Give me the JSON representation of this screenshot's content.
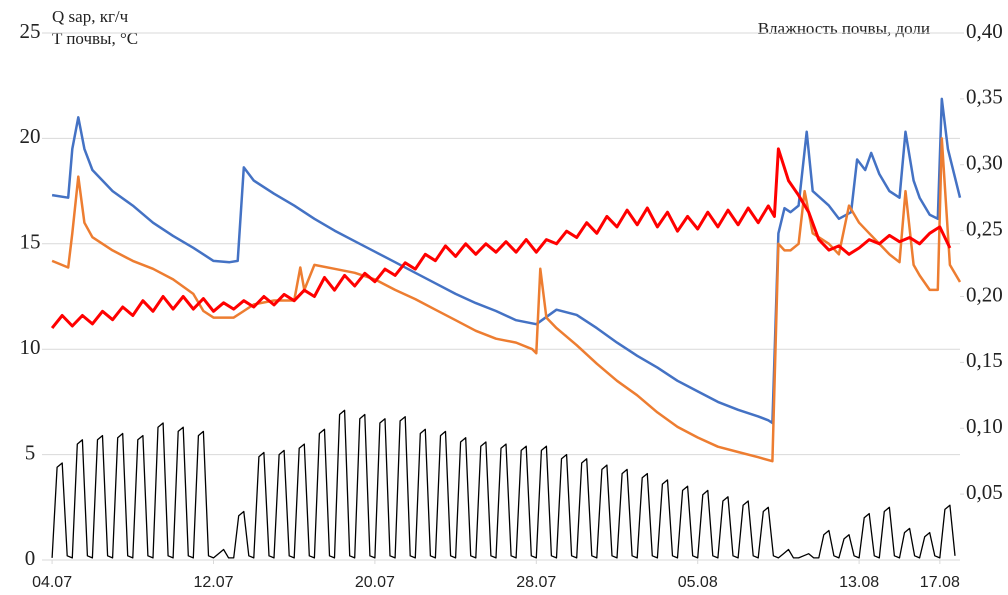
{
  "chart_data": {
    "type": "line",
    "ylabel": [
      "Q sap, кг/ч",
      "T почвы, °С"
    ],
    "y2label": "Влажность почвы, доли",
    "xlim": [
      -0.5,
      45
    ],
    "ylim": [
      0,
      25
    ],
    "y2lim": [
      0,
      0.4
    ],
    "xticks": [
      {
        "value": 0,
        "label": "04.07"
      },
      {
        "value": 8,
        "label": "12.07"
      },
      {
        "value": 16,
        "label": "20.07"
      },
      {
        "value": 24,
        "label": "28.07"
      },
      {
        "value": 32,
        "label": "05.08"
      },
      {
        "value": 40,
        "label": "13.08"
      },
      {
        "value": 44,
        "label": "17.08"
      }
    ],
    "yticks": [
      0,
      5,
      10,
      15,
      20,
      25
    ],
    "y2ticks": [
      {
        "value": 0.05,
        "label": "0,05"
      },
      {
        "value": 0.1,
        "label": "0,10"
      },
      {
        "value": 0.15,
        "label": "0,15"
      },
      {
        "value": 0.2,
        "label": "0,20"
      },
      {
        "value": 0.25,
        "label": "0,25"
      },
      {
        "value": 0.3,
        "label": "0,30"
      },
      {
        "value": 0.35,
        "label": "0,35"
      },
      {
        "value": 0.4,
        "label": "0,40"
      }
    ],
    "grid": true,
    "series": [
      {
        "color": "#000000",
        "width": 1.3,
        "x": [
          0,
          0.25,
          0.5,
          0.75,
          1,
          1.25,
          1.5,
          1.75,
          2,
          2.25,
          2.5,
          2.75,
          3,
          3.25,
          3.5,
          3.75,
          4,
          4.25,
          4.5,
          4.75,
          5,
          5.25,
          5.5,
          5.75,
          6,
          6.25,
          6.5,
          6.75,
          7,
          7.25,
          7.5,
          7.75,
          8,
          8.25,
          8.5,
          8.75,
          9,
          9.25,
          9.5,
          9.75,
          10,
          10.25,
          10.5,
          10.75,
          11,
          11.25,
          11.5,
          11.75,
          12,
          12.25,
          12.5,
          12.75,
          13,
          13.25,
          13.5,
          13.75,
          14,
          14.25,
          14.5,
          14.75,
          15,
          15.25,
          15.5,
          15.75,
          16,
          16.25,
          16.5,
          16.75,
          17,
          17.25,
          17.5,
          17.75,
          18,
          18.25,
          18.5,
          18.75,
          19,
          19.25,
          19.5,
          19.75,
          20,
          20.25,
          20.5,
          20.75,
          21,
          21.25,
          21.5,
          21.75,
          22,
          22.25,
          22.5,
          22.75,
          23,
          23.25,
          23.5,
          23.75,
          24,
          24.25,
          24.5,
          24.75,
          25,
          25.25,
          25.5,
          25.75,
          26,
          26.25,
          26.5,
          26.75,
          27,
          27.25,
          27.5,
          27.75,
          28,
          28.25,
          28.5,
          28.75,
          29,
          29.25,
          29.5,
          29.75,
          30,
          30.25,
          30.5,
          30.75,
          31,
          31.25,
          31.5,
          31.75,
          32,
          32.25,
          32.5,
          32.75,
          33,
          33.25,
          33.5,
          33.75,
          34,
          34.25,
          34.5,
          34.75,
          35,
          35.25,
          35.5,
          35.75,
          36,
          36.25,
          36.5,
          36.75,
          37,
          37.25,
          37.5,
          37.75,
          38,
          38.25,
          38.5,
          38.75,
          39,
          39.25,
          39.5,
          39.75,
          40,
          40.25,
          40.5,
          40.75,
          41,
          41.25,
          41.5,
          41.75,
          42,
          42.25,
          42.5,
          42.75,
          43,
          43.25,
          43.5,
          43.75,
          44,
          44.25,
          44.5,
          44.75
        ],
        "values": [
          0.1,
          4.4,
          4.6,
          0.2,
          0.1,
          5.5,
          5.7,
          0.2,
          0.1,
          5.7,
          5.9,
          0.2,
          0.1,
          5.8,
          6.0,
          0.2,
          0.1,
          5.7,
          5.9,
          0.2,
          0.1,
          6.3,
          6.5,
          0.2,
          0.1,
          6.1,
          6.3,
          0.2,
          0.1,
          5.9,
          6.1,
          0.2,
          0.1,
          0.3,
          0.5,
          0.1,
          0.1,
          2.1,
          2.3,
          0.2,
          0.1,
          4.9,
          5.1,
          0.2,
          0.1,
          5.0,
          5.2,
          0.2,
          0.1,
          5.3,
          5.5,
          0.2,
          0.1,
          6.0,
          6.2,
          0.2,
          0.1,
          6.9,
          7.1,
          0.2,
          0.1,
          6.7,
          6.9,
          0.2,
          0.1,
          6.5,
          6.7,
          0.2,
          0.1,
          6.6,
          6.8,
          0.2,
          0.1,
          6.0,
          6.2,
          0.2,
          0.1,
          5.9,
          6.1,
          0.2,
          0.1,
          5.6,
          5.8,
          0.2,
          0.1,
          5.4,
          5.6,
          0.2,
          0.1,
          5.3,
          5.5,
          0.2,
          0.1,
          5.2,
          5.4,
          0.2,
          0.1,
          5.2,
          5.4,
          0.2,
          0.1,
          4.8,
          5.0,
          0.2,
          0.1,
          4.6,
          4.8,
          0.2,
          0.1,
          4.3,
          4.5,
          0.2,
          0.1,
          4.1,
          4.3,
          0.2,
          0.1,
          3.9,
          4.1,
          0.2,
          0.1,
          3.6,
          3.8,
          0.2,
          0.1,
          3.3,
          3.5,
          0.2,
          0.1,
          3.1,
          3.3,
          0.2,
          0.1,
          2.8,
          3.0,
          0.2,
          0.1,
          2.6,
          2.8,
          0.2,
          0.1,
          2.3,
          2.5,
          0.2,
          0.1,
          0.3,
          0.5,
          0.1,
          0.1,
          0.2,
          0.3,
          0.1,
          0.1,
          1.2,
          1.4,
          0.2,
          0.1,
          1.0,
          1.2,
          0.2,
          0.1,
          2.0,
          2.2,
          0.2,
          0.1,
          2.3,
          2.5,
          0.2,
          0.1,
          1.3,
          1.5,
          0.2,
          0.1,
          1.1,
          1.3,
          0.2,
          0.1,
          2.4,
          2.6,
          0.2
        ]
      },
      {
        "color": "#4472c4",
        "width": 2.5,
        "axis": "y2",
        "x": [
          0,
          0.8,
          1,
          1.3,
          1.6,
          2,
          3,
          4,
          5,
          6,
          7,
          8,
          8.8,
          9.2,
          9.5,
          10,
          11,
          12,
          13,
          14,
          15,
          16,
          17,
          18,
          19,
          20,
          21,
          22,
          23,
          24,
          25,
          26,
          27,
          28,
          29,
          30,
          31,
          32,
          33,
          34,
          35,
          35.5,
          35.7,
          36,
          36.3,
          36.6,
          37,
          37.4,
          37.7,
          38.5,
          39,
          39.6,
          39.9,
          40.3,
          40.6,
          41,
          41.5,
          42,
          42.3,
          42.7,
          43,
          43.5,
          43.9,
          44.1,
          44.4,
          45
        ],
        "values": [
          0.277,
          0.275,
          0.312,
          0.336,
          0.312,
          0.296,
          0.28,
          0.269,
          0.256,
          0.246,
          0.237,
          0.227,
          0.226,
          0.227,
          0.298,
          0.288,
          0.278,
          0.269,
          0.259,
          0.25,
          0.242,
          0.234,
          0.226,
          0.218,
          0.21,
          0.202,
          0.195,
          0.189,
          0.182,
          0.179,
          0.19,
          0.186,
          0.176,
          0.165,
          0.155,
          0.146,
          0.136,
          0.128,
          0.12,
          0.114,
          0.109,
          0.106,
          0.104,
          0.248,
          0.267,
          0.264,
          0.269,
          0.325,
          0.28,
          0.269,
          0.259,
          0.264,
          0.304,
          0.296,
          0.309,
          0.293,
          0.28,
          0.275,
          0.325,
          0.288,
          0.275,
          0.262,
          0.259,
          0.35,
          0.312,
          0.275
        ]
      },
      {
        "color": "#ed7d31",
        "width": 2.5,
        "axis": "y2",
        "x": [
          0,
          0.8,
          1,
          1.3,
          1.6,
          2,
          3,
          4,
          5,
          6,
          7,
          7.5,
          8,
          9,
          9.5,
          10,
          11,
          12,
          12.3,
          12.5,
          13,
          14,
          15,
          16,
          17,
          18,
          19,
          20,
          21,
          22,
          23,
          23.8,
          24,
          24.2,
          24.5,
          25,
          26,
          27,
          28,
          29,
          30,
          31,
          32,
          33,
          34,
          35,
          35.7,
          36,
          36.3,
          36.6,
          37,
          37.3,
          37.7,
          38.5,
          39,
          39.5,
          40,
          40.5,
          41,
          41.5,
          42,
          42.3,
          42.7,
          43,
          43.5,
          43.9,
          44.1,
          44.5,
          45
        ],
        "values": [
          0.227,
          0.222,
          0.248,
          0.291,
          0.256,
          0.245,
          0.235,
          0.227,
          0.221,
          0.213,
          0.202,
          0.189,
          0.184,
          0.184,
          0.189,
          0.194,
          0.197,
          0.197,
          0.222,
          0.205,
          0.224,
          0.221,
          0.218,
          0.213,
          0.205,
          0.198,
          0.19,
          0.182,
          0.174,
          0.168,
          0.165,
          0.16,
          0.157,
          0.221,
          0.184,
          0.176,
          0.163,
          0.149,
          0.136,
          0.125,
          0.112,
          0.101,
          0.093,
          0.086,
          0.082,
          0.078,
          0.075,
          0.24,
          0.235,
          0.235,
          0.24,
          0.28,
          0.248,
          0.24,
          0.232,
          0.269,
          0.256,
          0.248,
          0.24,
          0.232,
          0.226,
          0.28,
          0.224,
          0.216,
          0.205,
          0.205,
          0.32,
          0.224,
          0.211
        ]
      },
      {
        "color": "#ff0000",
        "width": 3,
        "x": [
          0,
          0.5,
          1,
          1.5,
          2,
          2.5,
          3,
          3.5,
          4,
          4.5,
          5,
          5.5,
          6,
          6.5,
          7,
          7.5,
          8,
          8.5,
          9,
          9.5,
          10,
          10.5,
          11,
          11.5,
          12,
          12.5,
          13,
          13.5,
          14,
          14.5,
          15,
          15.5,
          16,
          16.5,
          17,
          17.5,
          18,
          18.5,
          19,
          19.5,
          20,
          20.5,
          21,
          21.5,
          22,
          22.5,
          23,
          23.5,
          24,
          24.5,
          25,
          25.5,
          26,
          26.5,
          27,
          27.5,
          28,
          28.5,
          29,
          29.5,
          30,
          30.5,
          31,
          31.5,
          32,
          32.5,
          33,
          33.5,
          34,
          34.5,
          35,
          35.5,
          35.8,
          36,
          36.5,
          37,
          37.5,
          38,
          38.5,
          39,
          39.5,
          40,
          40.5,
          41,
          41.5,
          42,
          42.5,
          43,
          43.5,
          44,
          44.5
        ],
        "values": [
          11.0,
          11.6,
          11.1,
          11.6,
          11.2,
          11.8,
          11.4,
          12.0,
          11.6,
          12.3,
          11.8,
          12.5,
          11.9,
          12.5,
          11.9,
          12.4,
          11.8,
          12.2,
          11.9,
          12.3,
          12.0,
          12.5,
          12.1,
          12.6,
          12.3,
          12.8,
          12.5,
          13.4,
          12.8,
          13.5,
          13.0,
          13.6,
          13.2,
          13.8,
          13.5,
          14.1,
          13.8,
          14.5,
          14.2,
          14.9,
          14.4,
          15.0,
          14.5,
          15.0,
          14.6,
          15.1,
          14.6,
          15.2,
          14.6,
          15.2,
          15.0,
          15.6,
          15.3,
          16.0,
          15.5,
          16.3,
          15.8,
          16.6,
          15.9,
          16.7,
          15.8,
          16.5,
          15.6,
          16.3,
          15.7,
          16.5,
          15.8,
          16.6,
          15.9,
          16.7,
          16.0,
          16.8,
          16.3,
          19.5,
          18.0,
          17.3,
          16.5,
          15.2,
          14.7,
          14.9,
          14.5,
          14.8,
          15.2,
          15.0,
          15.4,
          15.1,
          15.3,
          15.0,
          15.5,
          15.8,
          14.8
        ]
      }
    ]
  }
}
